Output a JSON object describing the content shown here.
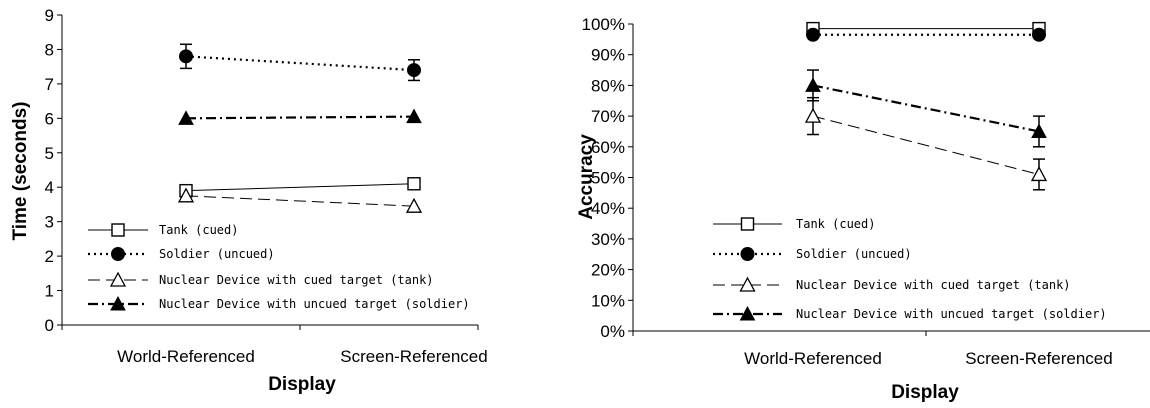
{
  "chart_data": [
    {
      "type": "line",
      "title": "",
      "xlabel": "Display",
      "ylabel": "Time (seconds)",
      "categories": [
        "World-Referenced",
        "Screen-Referenced"
      ],
      "ylim": [
        0,
        9
      ],
      "yticks": [
        0,
        1,
        2,
        3,
        4,
        5,
        6,
        7,
        8,
        9
      ],
      "ytick_labels": [
        "0",
        "1",
        "2",
        "3",
        "4",
        "5",
        "6",
        "7",
        "8",
        "9"
      ],
      "legend_position": "bottom-left",
      "grid": false,
      "series": [
        {
          "name": "Tank (cued)",
          "values": [
            3.9,
            4.1
          ],
          "error": [
            0,
            0
          ],
          "marker": "open-square",
          "line": "solid"
        },
        {
          "name": "Soldier (uncued)",
          "values": [
            7.8,
            7.4
          ],
          "error": [
            0.35,
            0.3
          ],
          "marker": "filled-circle",
          "line": "dotted"
        },
        {
          "name": "Nuclear Device with cued target (tank)",
          "values": [
            3.75,
            3.45
          ],
          "error": [
            0,
            0
          ],
          "marker": "open-triangle",
          "line": "dashed"
        },
        {
          "name": "Nuclear Device with uncued target (soldier)",
          "values": [
            6.0,
            6.05
          ],
          "error": [
            0,
            0
          ],
          "marker": "filled-triangle",
          "line": "dash-dot"
        }
      ]
    },
    {
      "type": "line",
      "title": "",
      "xlabel": "Display",
      "ylabel": "Accuracy",
      "categories": [
        "World-Referenced",
        "Screen-Referenced"
      ],
      "ylim": [
        0,
        100
      ],
      "yticks": [
        0,
        10,
        20,
        30,
        40,
        50,
        60,
        70,
        80,
        90,
        100
      ],
      "ytick_labels": [
        "0%",
        "10%",
        "20%",
        "30%",
        "40%",
        "50%",
        "60%",
        "70%",
        "80%",
        "90%",
        "100%"
      ],
      "legend_position": "bottom-left",
      "grid": false,
      "series": [
        {
          "name": "Tank (cued)",
          "values": [
            98.5,
            98.5
          ],
          "error": [
            0,
            0
          ],
          "marker": "open-square",
          "line": "solid"
        },
        {
          "name": "Soldier (uncued)",
          "values": [
            96.5,
            96.5
          ],
          "error": [
            0,
            0
          ],
          "marker": "filled-circle",
          "line": "dotted"
        },
        {
          "name": "Nuclear Device with cued target (tank)",
          "values": [
            70,
            51
          ],
          "error": [
            6,
            5
          ],
          "marker": "open-triangle",
          "line": "dashed"
        },
        {
          "name": "Nuclear Device with uncued target (soldier)",
          "values": [
            80,
            65
          ],
          "error": [
            5,
            5
          ],
          "marker": "filled-triangle",
          "line": "dash-dot"
        }
      ]
    }
  ]
}
